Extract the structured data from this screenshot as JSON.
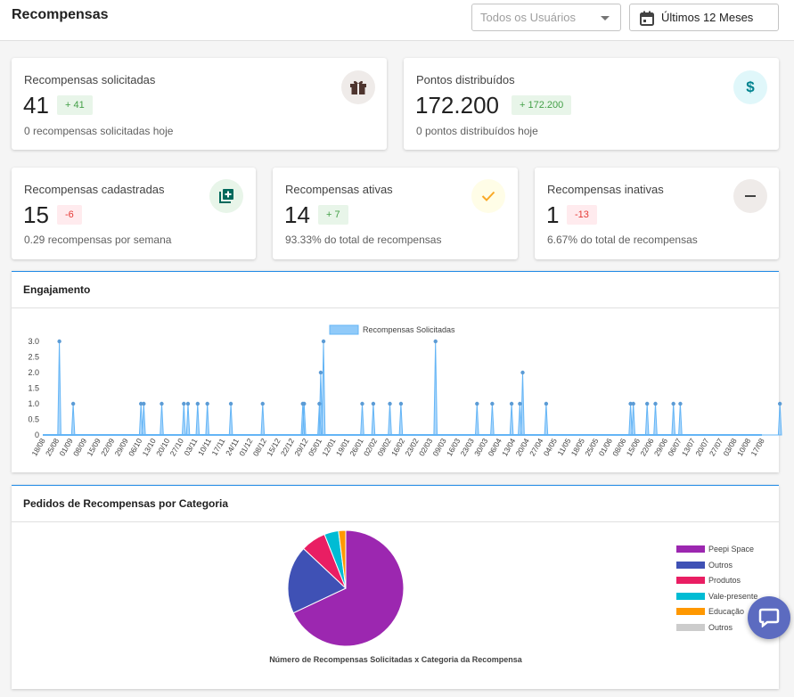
{
  "header": {
    "title": "Recompensas",
    "user_select_placeholder": "Todos os Usuários",
    "date_range_label": "Últimos 12 Meses"
  },
  "cards": {
    "solicitadas": {
      "title": "Recompensas solicitadas",
      "value": "41",
      "badge": "+ 41",
      "sub": "0 recompensas solicitadas hoje",
      "icon": "gift-icon"
    },
    "pontos": {
      "title": "Pontos distribuídos",
      "value": "172.200",
      "badge": "+ 172.200",
      "sub": "0 pontos distribuídos hoje",
      "icon": "dollar-icon"
    },
    "cadastradas": {
      "title": "Recompensas cadastradas",
      "value": "15",
      "badge": "-6",
      "sub": "0.29 recompensas por semana",
      "icon": "library-add-icon"
    },
    "ativas": {
      "title": "Recompensas ativas",
      "value": "14",
      "badge": "+ 7",
      "sub": "93.33% do total de recompensas",
      "icon": "check-icon"
    },
    "inativas": {
      "title": "Recompensas inativas",
      "value": "1",
      "badge": "-13",
      "sub": "6.67% do total de recompensas",
      "icon": "minus-icon"
    }
  },
  "engagement": {
    "title": "Engajamento",
    "legend": "Recompensas Solicitadas"
  },
  "category": {
    "title": "Pedidos de Recompensas por Categoria",
    "caption": "Número de Recompensas Solicitadas x Categoria da Recompensa"
  },
  "chart_data": [
    {
      "type": "area",
      "series": [
        {
          "name": "Recompensas Solicitadas",
          "color": "#90caf9"
        }
      ],
      "y_ticks": [
        "0",
        "0.5",
        "1.0",
        "1.5",
        "2.0",
        "2.5",
        "3.0"
      ],
      "ylim": [
        0,
        3
      ],
      "x_tick_labels": [
        "18/08",
        "25/08",
        "01/09",
        "08/09",
        "15/09",
        "22/09",
        "29/09",
        "06/10",
        "13/10",
        "20/10",
        "27/10",
        "03/11",
        "10/11",
        "17/11",
        "24/11",
        "01/12",
        "08/12",
        "15/12",
        "22/12",
        "29/12",
        "05/01",
        "12/01",
        "19/01",
        "26/01",
        "02/02",
        "09/02",
        "16/02",
        "23/02",
        "02/03",
        "09/03",
        "16/03",
        "23/03",
        "30/03",
        "06/04",
        "13/04",
        "20/04",
        "27/04",
        "04/05",
        "11/05",
        "18/05",
        "25/05",
        "01/06",
        "08/06",
        "15/06",
        "22/06",
        "29/06",
        "06/07",
        "13/07",
        "20/07",
        "27/07",
        "03/08",
        "10/08",
        "17/08"
      ],
      "spikes": [
        {
          "week": 1.2,
          "value": 3
        },
        {
          "week": 2.2,
          "value": 1
        },
        {
          "week": 7.1,
          "value": 1
        },
        {
          "week": 7.3,
          "value": 1
        },
        {
          "week": 8.6,
          "value": 1
        },
        {
          "week": 10.2,
          "value": 1
        },
        {
          "week": 10.5,
          "value": 1
        },
        {
          "week": 11.2,
          "value": 1
        },
        {
          "week": 11.9,
          "value": 1
        },
        {
          "week": 13.6,
          "value": 1
        },
        {
          "week": 15.9,
          "value": 1
        },
        {
          "week": 18.8,
          "value": 1
        },
        {
          "week": 18.9,
          "value": 1
        },
        {
          "week": 20.0,
          "value": 1
        },
        {
          "week": 20.1,
          "value": 2
        },
        {
          "week": 20.3,
          "value": 3
        },
        {
          "week": 23.1,
          "value": 1
        },
        {
          "week": 23.9,
          "value": 1
        },
        {
          "week": 25.1,
          "value": 1
        },
        {
          "week": 25.9,
          "value": 1
        },
        {
          "week": 28.4,
          "value": 3
        },
        {
          "week": 31.4,
          "value": 1
        },
        {
          "week": 32.5,
          "value": 1
        },
        {
          "week": 33.9,
          "value": 1
        },
        {
          "week": 34.5,
          "value": 1
        },
        {
          "week": 34.7,
          "value": 2
        },
        {
          "week": 36.4,
          "value": 1
        },
        {
          "week": 42.5,
          "value": 1
        },
        {
          "week": 42.7,
          "value": 1
        },
        {
          "week": 43.7,
          "value": 1
        },
        {
          "week": 44.3,
          "value": 1
        },
        {
          "week": 45.6,
          "value": 1
        },
        {
          "week": 46.1,
          "value": 1
        },
        {
          "week": 53.3,
          "value": 1
        }
      ]
    },
    {
      "type": "pie",
      "slices": [
        {
          "label": "Peepi Space",
          "value": 68,
          "color": "#9c27b0"
        },
        {
          "label": "Outros",
          "value": 19,
          "color": "#3f51b5"
        },
        {
          "label": "Produtos",
          "value": 7,
          "color": "#e91e63"
        },
        {
          "label": "Vale-presente",
          "value": 4,
          "color": "#00bcd4"
        },
        {
          "label": "Educação",
          "value": 2,
          "color": "#ff9800"
        },
        {
          "label": "Outros",
          "value": 0,
          "color": "#cccccc"
        }
      ]
    }
  ]
}
